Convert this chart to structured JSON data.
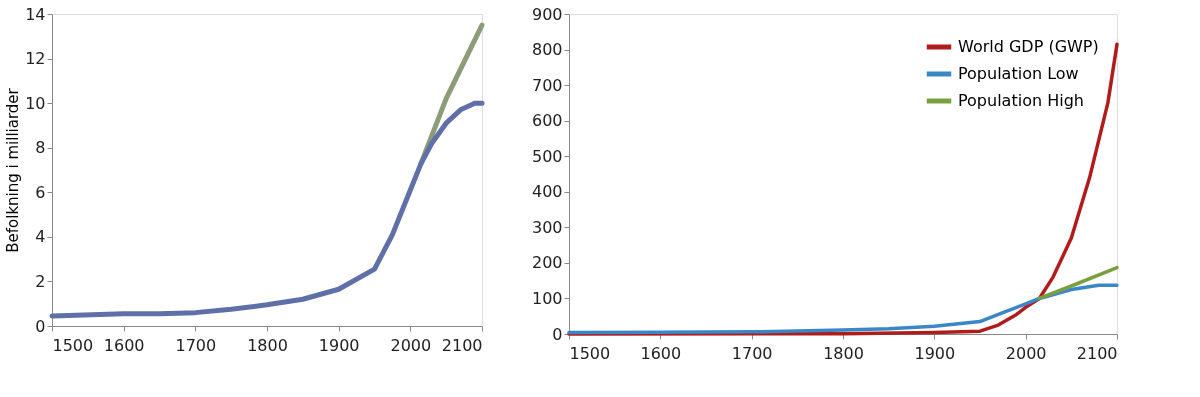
{
  "chart_data": [
    {
      "type": "line",
      "ylabel": "Befolkning i milliarder",
      "xlim": [
        1500,
        2100
      ],
      "xticks": [
        1500,
        1600,
        1700,
        1800,
        1900,
        2000,
        2100
      ],
      "ylim": [
        0,
        14
      ],
      "yticks": [
        0,
        2,
        4,
        6,
        8,
        10,
        12,
        14
      ],
      "grid": false,
      "series": [
        {
          "color": "#8c9c78",
          "x": [
            2015,
            2050,
            2100
          ],
          "values": [
            7.3,
            10.2,
            13.5
          ]
        },
        {
          "color": "#5f70a8",
          "x": [
            1500,
            1600,
            1650,
            1700,
            1750,
            1800,
            1850,
            1900,
            1950,
            1975,
            2000,
            2015,
            2030,
            2050,
            2070,
            2090,
            2100
          ],
          "values": [
            0.45,
            0.55,
            0.55,
            0.6,
            0.75,
            0.95,
            1.2,
            1.65,
            2.55,
            4.1,
            6.1,
            7.3,
            8.2,
            9.1,
            9.7,
            10.0,
            10.0
          ]
        }
      ]
    },
    {
      "type": "line",
      "xlim": [
        1500,
        2100
      ],
      "xticks": [
        1500,
        1600,
        1700,
        1800,
        1900,
        2000,
        2100
      ],
      "ylim": [
        0,
        900
      ],
      "yticks": [
        0,
        100,
        200,
        300,
        400,
        500,
        600,
        700,
        800,
        900
      ],
      "grid": false,
      "legend": "top right",
      "series": [
        {
          "name": "World GDP (GWP)",
          "color": "#b01c1c",
          "x": [
            1500,
            1800,
            1900,
            1950,
            1970,
            1990,
            2000,
            2015,
            2030,
            2050,
            2070,
            2090,
            2100
          ],
          "values": [
            0,
            1,
            4,
            8,
            25,
            55,
            75,
            100,
            160,
            270,
            440,
            650,
            815
          ]
        },
        {
          "name": "Population Low",
          "color": "#3a87c8",
          "x": [
            1500,
            1600,
            1700,
            1800,
            1850,
            1900,
            1950,
            1975,
            2000,
            2015,
            2050,
            2080,
            2100
          ],
          "values": [
            4,
            5,
            6,
            11,
            15,
            22,
            35,
            60,
            85,
            100,
            125,
            137,
            137
          ]
        },
        {
          "name": "Population High",
          "color": "#78a040",
          "x": [
            2015,
            2050,
            2100
          ],
          "values": [
            100,
            135,
            187
          ]
        }
      ]
    }
  ]
}
